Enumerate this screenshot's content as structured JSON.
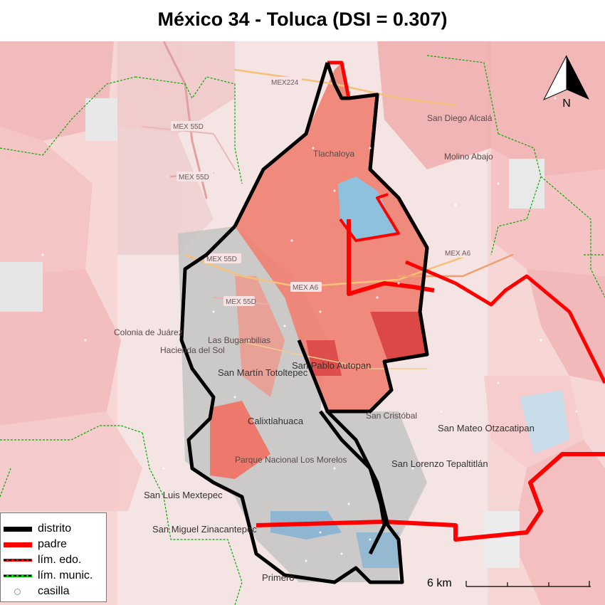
{
  "title": "México 34 - Toluca (DSI = 0.307)",
  "north_label": "N",
  "scale_label": "6 km",
  "legend": [
    {
      "key": "distrito",
      "label": "distrito",
      "color": "#000000"
    },
    {
      "key": "padre",
      "label": "padre",
      "color": "#ff0000"
    },
    {
      "key": "lim_edo",
      "label": "lím. edo.",
      "color": "#ff0000"
    },
    {
      "key": "lim_munic",
      "label": "lím. munic.",
      "color": "#00cc00"
    },
    {
      "key": "casilla",
      "label": "casilla",
      "color": "#ffffff"
    }
  ],
  "places": [
    {
      "name": "Tlachaloya"
    },
    {
      "name": "San Diego Alcalá"
    },
    {
      "name": "Molino Abajo"
    },
    {
      "name": "Las Bugambilias"
    },
    {
      "name": "Hacienda del Sol"
    },
    {
      "name": "San Martín Totoltepec"
    },
    {
      "name": "San Pablo Autopan"
    },
    {
      "name": "Calixtlahuaca"
    },
    {
      "name": "San Cristóbal"
    },
    {
      "name": "San Mateo Otzacatipan"
    },
    {
      "name": "San Lorenzo Tepaltitlán"
    },
    {
      "name": "Parque Nacional Los Morelos"
    },
    {
      "name": "San Luis Mextepec"
    },
    {
      "name": "San Miguel Zinacantepec"
    },
    {
      "name": "Primero"
    },
    {
      "name": "Colonia de Juárez"
    }
  ],
  "roads": [
    "MEX224",
    "MEX 55D",
    "MEX 55D",
    "MEX 55D",
    "MEX 55D",
    "MEX A6",
    "MEX A6"
  ],
  "colors": {
    "district_fill": "#f08070",
    "district_dark": "#d94040",
    "padre_water": "#8ec1dd",
    "background_pink": "#f4c9c9",
    "grey_zone": "#c8c8c8"
  }
}
